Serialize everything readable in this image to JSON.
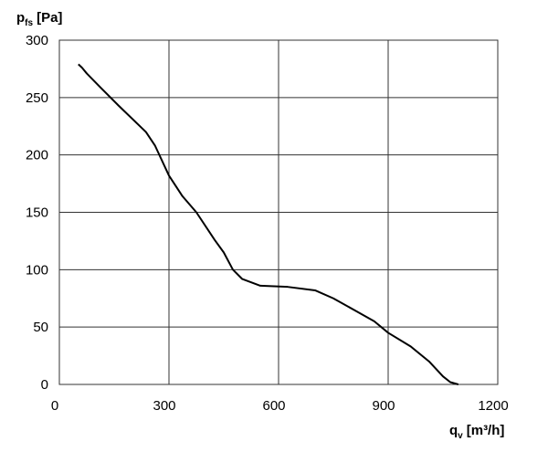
{
  "chart_data": {
    "type": "line",
    "ylabel": {
      "symbol": "p",
      "subscript": "fs",
      "unit": "[Pa]"
    },
    "xlabel": {
      "symbol": "q",
      "subscript": "v",
      "unit": "[m³/h]"
    },
    "x": [
      52,
      62,
      75,
      112,
      162,
      237,
      262,
      300,
      337,
      375,
      425,
      450,
      475,
      500,
      550,
      625,
      700,
      750,
      812,
      862,
      900,
      962,
      1012,
      1050,
      1070,
      1092
    ],
    "series": [
      {
        "color": "#000000",
        "values": [
          279,
          276,
          271,
          259,
          243,
          220,
          208,
          182,
          164,
          150,
          126,
          115,
          100,
          92,
          86,
          85,
          82,
          75,
          64,
          55,
          45,
          33,
          20,
          7,
          2,
          0
        ]
      }
    ],
    "xlim": [
      0,
      1200
    ],
    "xticks": [
      0,
      300,
      600,
      900,
      1200
    ],
    "ylim": [
      0,
      300
    ],
    "yticks": [
      0,
      50,
      100,
      150,
      200,
      250,
      300
    ],
    "grid": true
  }
}
